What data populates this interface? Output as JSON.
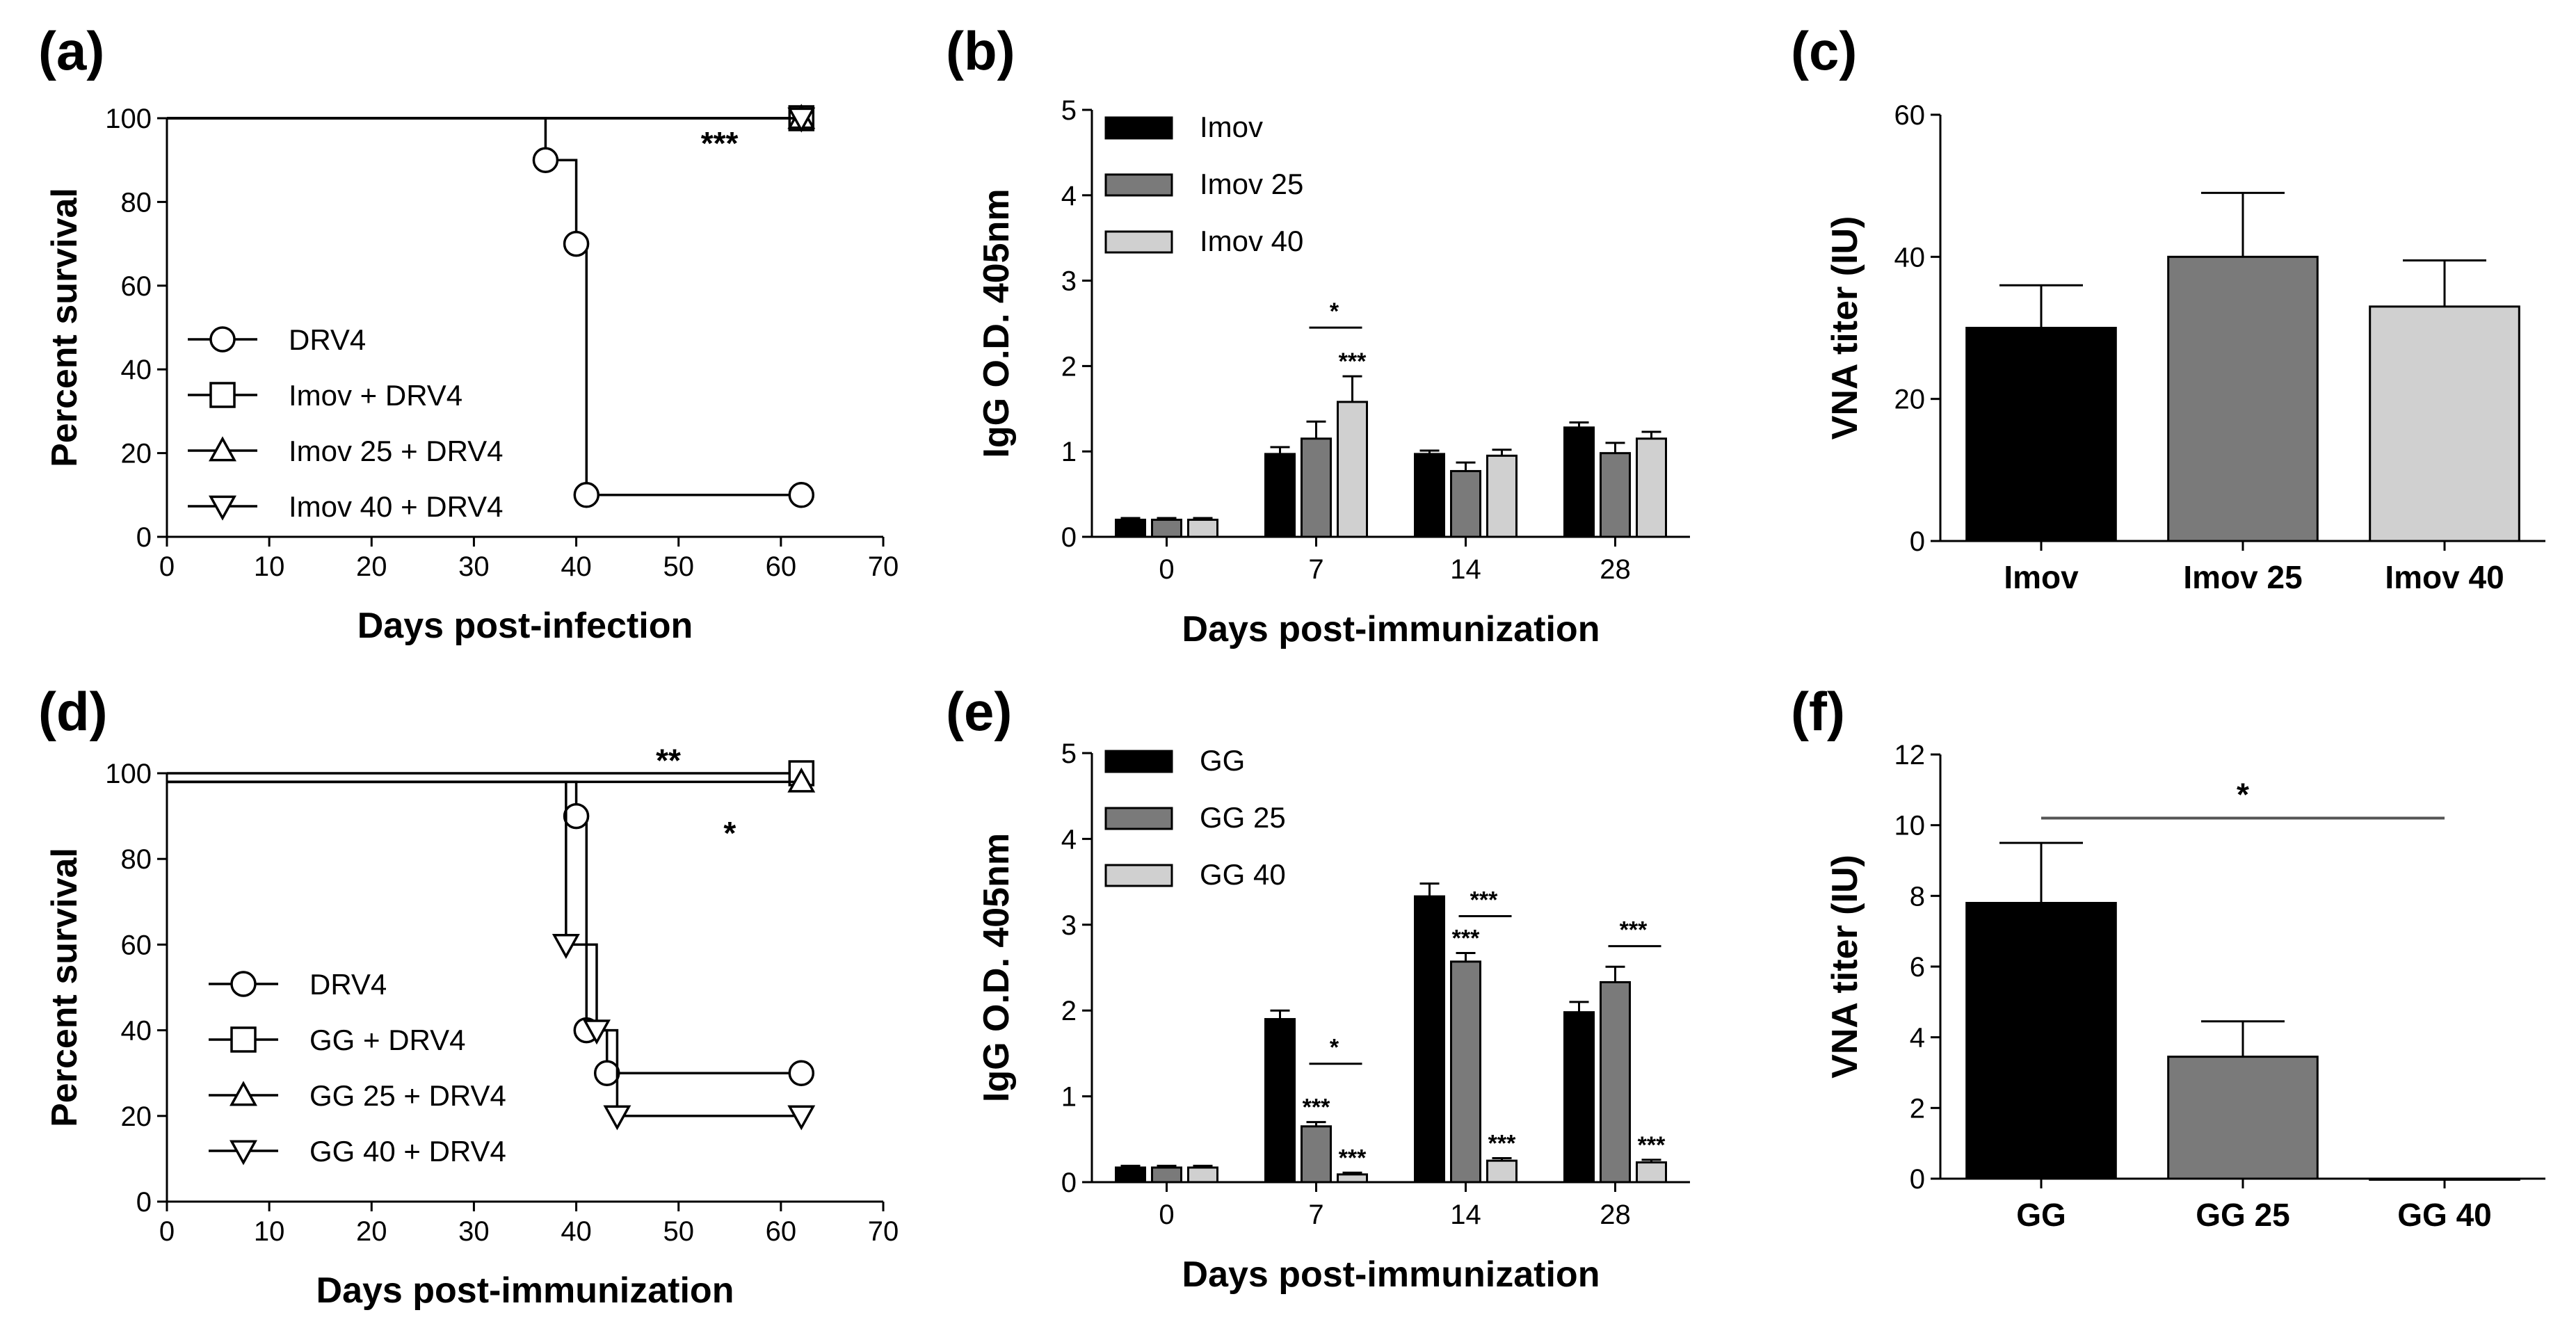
{
  "figure": {
    "colors": {
      "black": "#000000",
      "dark_gray": "#7a7a7a",
      "light_gray": "#d0d0d0",
      "line": "#000000"
    },
    "symbols": {
      "circle": "circle-icon",
      "square": "square-icon",
      "triangle_up": "triangle-up-icon",
      "triangle_down": "triangle-down-icon"
    }
  },
  "chart_data": [
    {
      "panel": "(a)",
      "type": "line",
      "subtype": "kaplan-meier",
      "xlabel": "Days post-infection",
      "ylabel": "Percent survival",
      "xlim": [
        0,
        70
      ],
      "ylim": [
        0,
        100
      ],
      "xticks": [
        "0",
        "10",
        "20",
        "30",
        "40",
        "50",
        "60",
        "70"
      ],
      "yticks": [
        "0",
        "20",
        "40",
        "60",
        "80",
        "100"
      ],
      "legend_position": "bottom-left",
      "series": [
        {
          "name": "DRV4",
          "marker": "circle",
          "steps": [
            [
              0,
              100
            ],
            [
              37,
              100
            ],
            [
              37,
              90
            ],
            [
              40,
              90
            ],
            [
              40,
              70
            ],
            [
              41,
              70
            ],
            [
              41,
              10
            ],
            [
              62,
              10
            ]
          ],
          "markers": [
            [
              37,
              90
            ],
            [
              40,
              70
            ],
            [
              41,
              10
            ],
            [
              62,
              10
            ]
          ]
        },
        {
          "name": "Imov + DRV4",
          "marker": "square",
          "steps": [
            [
              0,
              100
            ],
            [
              62,
              100
            ]
          ],
          "markers": [
            [
              62,
              100
            ]
          ]
        },
        {
          "name": "Imov 25 + DRV4",
          "marker": "triangle_up",
          "steps": [
            [
              0,
              100
            ],
            [
              62,
              100
            ]
          ],
          "markers": [
            [
              62,
              100
            ]
          ]
        },
        {
          "name": "Imov 40 + DRV4",
          "marker": "triangle_down",
          "steps": [
            [
              0,
              100
            ],
            [
              62,
              100
            ]
          ],
          "markers": [
            [
              62,
              100
            ]
          ]
        }
      ],
      "annotations": [
        {
          "text": "***",
          "x": 54,
          "y": 94
        }
      ]
    },
    {
      "panel": "(b)",
      "type": "bar",
      "xlabel": "Days post-immunization",
      "ylabel": "IgG O.D. 405nm",
      "ylim": [
        0,
        5
      ],
      "yticks": [
        "0",
        "1",
        "2",
        "3",
        "4",
        "5"
      ],
      "categories": [
        "0",
        "7",
        "14",
        "28"
      ],
      "legend_position": "top-left",
      "series": [
        {
          "name": "Imov",
          "color": "#000000",
          "values": [
            0.2,
            0.97,
            0.97,
            1.28
          ],
          "errors": [
            0.02,
            0.08,
            0.04,
            0.06
          ]
        },
        {
          "name": "Imov 25",
          "color": "#7a7a7a",
          "values": [
            0.2,
            1.15,
            0.77,
            0.98
          ],
          "errors": [
            0.02,
            0.2,
            0.1,
            0.12
          ]
        },
        {
          "name": "Imov 40",
          "color": "#d0d0d0",
          "values": [
            0.2,
            1.58,
            0.95,
            1.15
          ],
          "errors": [
            0.02,
            0.3,
            0.07,
            0.08
          ]
        }
      ],
      "annotations": [
        {
          "text": "***",
          "category_index": 1,
          "series_index": 2,
          "placement": "above-error"
        },
        {
          "text": "*",
          "category_index": 1,
          "from_series": 1,
          "to_series": 2,
          "y": 2.45,
          "bracket": true
        }
      ]
    },
    {
      "panel": "(c)",
      "type": "bar",
      "xlabel": "",
      "ylabel": "VNA titer (IU)",
      "ylim": [
        0,
        60
      ],
      "yticks": [
        "0",
        "20",
        "40",
        "60"
      ],
      "categories": [
        "Imov",
        "Imov 25",
        "Imov 40"
      ],
      "values": [
        30,
        40,
        33
      ],
      "errors": [
        6,
        9,
        6.5
      ],
      "colors": [
        "#000000",
        "#7a7a7a",
        "#d0d0d0"
      ]
    },
    {
      "panel": "(d)",
      "type": "line",
      "subtype": "kaplan-meier",
      "xlabel": "Days post-immunization",
      "ylabel": "Percent survival",
      "xlim": [
        0,
        70
      ],
      "ylim": [
        0,
        100
      ],
      "xticks": [
        "0",
        "10",
        "20",
        "30",
        "40",
        "50",
        "60",
        "70"
      ],
      "yticks": [
        "0",
        "20",
        "40",
        "60",
        "80",
        "100"
      ],
      "legend_position": "bottom-left",
      "series": [
        {
          "name": "DRV4",
          "marker": "circle",
          "steps": [
            [
              0,
              98
            ],
            [
              40,
              98
            ],
            [
              40,
              90
            ],
            [
              41,
              90
            ],
            [
              41,
              40
            ],
            [
              43,
              40
            ],
            [
              43,
              30
            ],
            [
              62,
              30
            ]
          ],
          "markers": [
            [
              40,
              90
            ],
            [
              41,
              40
            ],
            [
              43,
              30
            ],
            [
              62,
              30
            ]
          ]
        },
        {
          "name": "GG + DRV4",
          "marker": "square",
          "steps": [
            [
              0,
              100
            ],
            [
              62,
              100
            ]
          ],
          "markers": [
            [
              62,
              100
            ]
          ]
        },
        {
          "name": "GG 25 + DRV4",
          "marker": "triangle_up",
          "steps": [
            [
              0,
              98
            ],
            [
              62,
              98
            ]
          ],
          "markers": [
            [
              62,
              98
            ]
          ]
        },
        {
          "name": "GG 40 + DRV4",
          "marker": "triangle_down",
          "steps": [
            [
              0,
              98
            ],
            [
              39,
              98
            ],
            [
              39,
              60
            ],
            [
              42,
              60
            ],
            [
              42,
              40
            ],
            [
              44,
              40
            ],
            [
              44,
              20
            ],
            [
              62,
              20
            ]
          ],
          "markers": [
            [
              39,
              60
            ],
            [
              42,
              40
            ],
            [
              44,
              20
            ],
            [
              62,
              20
            ]
          ]
        }
      ],
      "annotations": [
        {
          "text": "**",
          "x": 49,
          "y": 103
        },
        {
          "text": "*",
          "x": 55,
          "y": 86
        }
      ]
    },
    {
      "panel": "(e)",
      "type": "bar",
      "xlabel": "Days post-immunization",
      "ylabel": "IgG O.D. 405nm",
      "ylim": [
        0,
        5
      ],
      "yticks": [
        "0",
        "1",
        "2",
        "3",
        "4",
        "5"
      ],
      "categories": [
        "0",
        "7",
        "14",
        "28"
      ],
      "legend_position": "top-left",
      "series": [
        {
          "name": "GG",
          "color": "#000000",
          "values": [
            0.17,
            1.9,
            3.33,
            1.98
          ],
          "errors": [
            0.02,
            0.1,
            0.15,
            0.12
          ]
        },
        {
          "name": "GG 25",
          "color": "#7a7a7a",
          "values": [
            0.17,
            0.65,
            2.57,
            2.33
          ],
          "errors": [
            0.02,
            0.05,
            0.1,
            0.18
          ]
        },
        {
          "name": "GG 40",
          "color": "#d0d0d0",
          "values": [
            0.17,
            0.09,
            0.25,
            0.23
          ],
          "errors": [
            0.02,
            0.02,
            0.03,
            0.03
          ]
        }
      ],
      "annotations": [
        {
          "text": "***",
          "category_index": 1,
          "series_index": 1,
          "placement": "above-error"
        },
        {
          "text": "***",
          "category_index": 1,
          "series_index": 2,
          "placement": "above-error"
        },
        {
          "text": "*",
          "category_index": 1,
          "from_series": 1,
          "to_series": 2,
          "y": 1.38,
          "bracket": true
        },
        {
          "text": "***",
          "category_index": 2,
          "series_index": 1,
          "placement": "above-error"
        },
        {
          "text": "***",
          "category_index": 2,
          "series_index": 2,
          "placement": "above-error"
        },
        {
          "text": "***",
          "category_index": 2,
          "from_series": 1,
          "to_series": 2,
          "y": 3.1,
          "bracket": true
        },
        {
          "text": "***",
          "category_index": 3,
          "series_index": 2,
          "placement": "above-error"
        },
        {
          "text": "***",
          "category_index": 3,
          "from_series": 1,
          "to_series": 2,
          "y": 2.75,
          "bracket": true
        }
      ]
    },
    {
      "panel": "(f)",
      "type": "bar",
      "xlabel": "",
      "ylabel": "VNA titer (IU)",
      "ylim": [
        0,
        12
      ],
      "yticks": [
        "0",
        "2",
        "4",
        "6",
        "8",
        "10",
        "12"
      ],
      "categories": [
        "GG",
        "GG 25",
        "GG 40"
      ],
      "values": [
        7.8,
        3.45,
        0
      ],
      "errors": [
        1.7,
        1.0,
        0
      ],
      "colors": [
        "#000000",
        "#7a7a7a",
        "#d0d0d0"
      ],
      "annotations": [
        {
          "text": "*",
          "from_index": 0,
          "to_index": 2,
          "y": 10.2,
          "bracket": true
        }
      ]
    }
  ]
}
